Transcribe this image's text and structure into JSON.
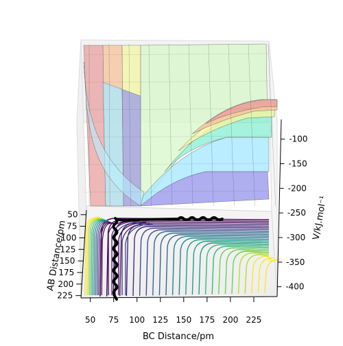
{
  "chart_data": {
    "type": "surface",
    "projection": "3d",
    "title": "",
    "xlabel": "BC Distance/pm",
    "ylabel": "AB Distance/pm",
    "zlabel": "V/kJ.mol⁻¹",
    "xticks": [
      "50",
      "75",
      "100",
      "125",
      "150",
      "175",
      "200",
      "225"
    ],
    "yticks": [
      "50",
      "75",
      "100",
      "125",
      "150",
      "175",
      "200",
      "225"
    ],
    "zticks": [
      "-100",
      "-150",
      "-200",
      "-250",
      "-300",
      "-350",
      "-400"
    ],
    "xlim": [
      40,
      250
    ],
    "ylim": [
      40,
      230
    ],
    "zlim": [
      -420,
      -60
    ],
    "grid": true,
    "colormap": "viridis",
    "surface_fill_bands": [
      {
        "level": "high",
        "color": "#e8a0a0"
      },
      {
        "level": "upper",
        "color": "#f7c29a"
      },
      {
        "level": "mid-upper",
        "color": "#f2f5a0"
      },
      {
        "level": "mid",
        "color": "#d7f7c8"
      },
      {
        "level": "low-mid",
        "color": "#8ff0d4"
      },
      {
        "level": "low",
        "color": "#a8e8ff"
      },
      {
        "level": "lowest",
        "color": "#9a9aee"
      }
    ],
    "reaction_path": {
      "color": "#000000",
      "description_points": [
        {
          "bc": 75,
          "ab": 225
        },
        {
          "bc": 75,
          "ab": 80
        },
        {
          "bc": 180,
          "ab": 50
        }
      ]
    }
  }
}
